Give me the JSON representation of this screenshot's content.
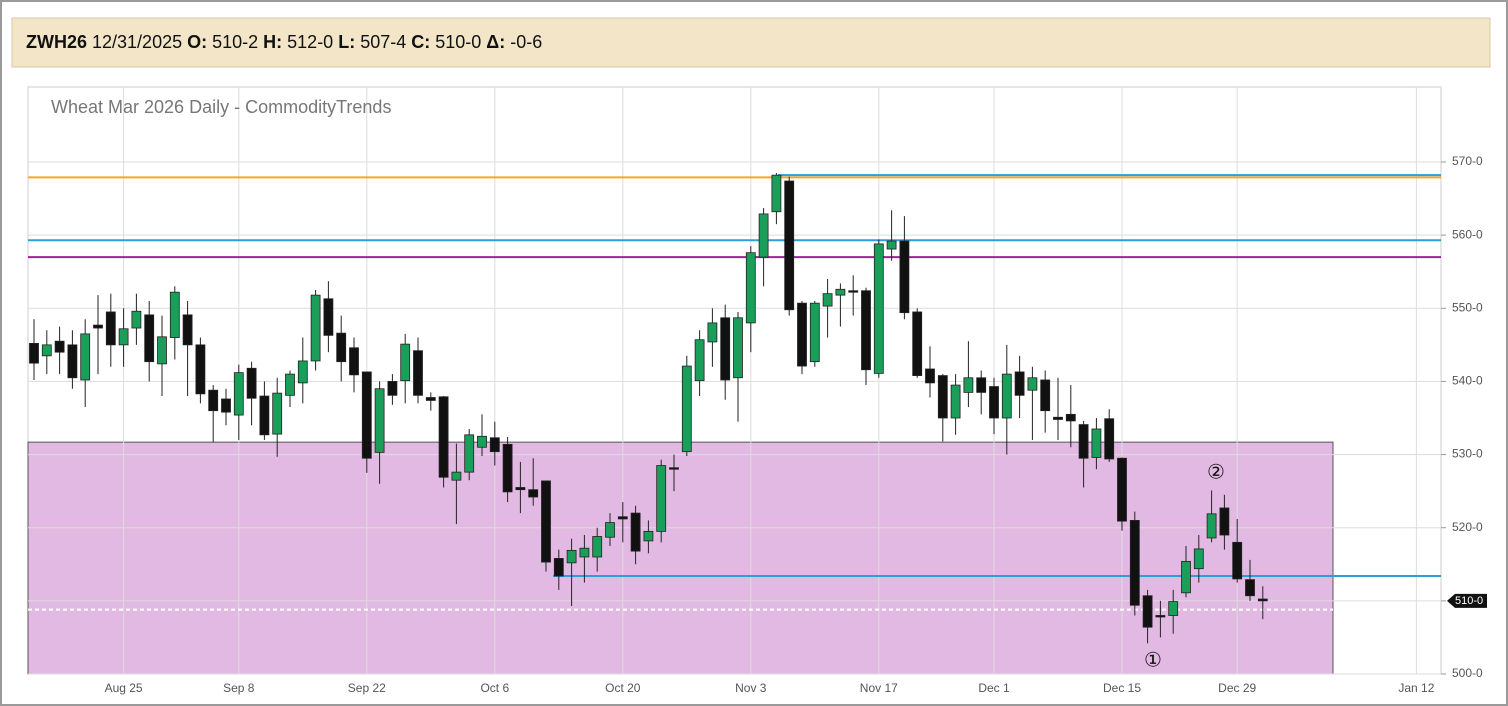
{
  "header": {
    "symbol": "ZWH26",
    "date": "12/31/2025",
    "fields": [
      {
        "label": "O:",
        "value": "510-2"
      },
      {
        "label": "H:",
        "value": "512-0"
      },
      {
        "label": "L:",
        "value": "507-4"
      },
      {
        "label": "C:",
        "value": "510-0"
      },
      {
        "label": "Δ:",
        "value": "-0-6"
      }
    ]
  },
  "chart_data": {
    "type": "candlestick",
    "title": "Wheat Mar 2026 Daily - CommodityTrends",
    "categories": [
      null,
      null,
      null,
      null,
      null,
      null,
      null,
      "Aug 25",
      null,
      null,
      null,
      null,
      null,
      null,
      null,
      null,
      "Sep 8",
      null,
      null,
      null,
      null,
      null,
      null,
      null,
      null,
      null,
      "Sep 22",
      null,
      null,
      null,
      null,
      null,
      null,
      null,
      null,
      null,
      "Oct 6",
      null,
      null,
      null,
      null,
      null,
      null,
      null,
      null,
      null,
      "Oct 20",
      null,
      null,
      null,
      null,
      null,
      null,
      null,
      null,
      null,
      "Nov 3",
      null,
      null,
      null,
      null,
      null,
      null,
      null,
      null,
      null,
      "Nov 17",
      null,
      null,
      null,
      null,
      null,
      null,
      null,
      null,
      "Dec 1",
      null,
      null,
      null,
      null,
      null,
      null,
      null,
      null,
      null,
      "Dec 15",
      null,
      null,
      null,
      null,
      null,
      null,
      null,
      null,
      "Dec 29",
      null,
      null,
      null,
      null,
      null,
      null,
      null,
      null,
      null,
      null,
      null,
      null,
      null,
      "Jan 12"
    ],
    "open": [
      545.2,
      543.5,
      545.5,
      545,
      540.2,
      547.7,
      549.5,
      545,
      547.3,
      549.1,
      542.4,
      546,
      549.1,
      545,
      538.8,
      537.6,
      535.4,
      541.8,
      538,
      532.8,
      538.1,
      539.8,
      542.8,
      551.3,
      546.6,
      544.6,
      541.3,
      530.3,
      540,
      540.1,
      544.2,
      537.8,
      537.9,
      526.5,
      527.6,
      531,
      532.3,
      531.4,
      525.5,
      525.2,
      526.4,
      515.8,
      515.2,
      516,
      516,
      518.7,
      521.5,
      522,
      518.2,
      519.5,
      528.2,
      530.4,
      540.1,
      545.4,
      548.7,
      540.5,
      548,
      557,
      563.2,
      567.4,
      550.7,
      542.7,
      550.3,
      551.8,
      552.4,
      552.4,
      541.1,
      558.1,
      559.2,
      549.5,
      541.7,
      540.8,
      535,
      538.5,
      540.5,
      539.3,
      535,
      541.3,
      538.8,
      540.2,
      535.1,
      535.5,
      534.1,
      529.6,
      534.9,
      529.5,
      521,
      510.7,
      508,
      508,
      511.1,
      514.4,
      518.6,
      522.7,
      518,
      512.9,
      510.25,
      null,
      null,
      null,
      null,
      null,
      null,
      null,
      null,
      null,
      null,
      null,
      null
    ],
    "high": [
      548.5,
      547,
      547.5,
      547,
      548.5,
      551.8,
      552,
      550,
      552,
      551,
      549,
      553,
      551,
      546,
      539.5,
      539,
      542.3,
      542.7,
      540,
      540.5,
      541.5,
      546,
      552.5,
      553.7,
      549,
      546,
      541.3,
      540,
      541,
      546.5,
      546,
      538.5,
      538,
      531.5,
      533.5,
      535.5,
      534.5,
      532.4,
      529,
      529.5,
      526.4,
      517,
      518.5,
      519,
      520,
      522,
      523.5,
      523,
      521,
      529.3,
      530,
      543.5,
      547,
      550,
      550.5,
      549.5,
      558.5,
      563.7,
      568.5,
      568,
      551,
      551,
      554,
      553.4,
      554.5,
      552.8,
      559.4,
      563.4,
      562.6,
      550,
      544.8,
      541,
      541,
      545.5,
      541.5,
      540.5,
      545,
      543.5,
      542,
      541.5,
      540.5,
      539.5,
      534.6,
      535,
      536.2,
      529.6,
      522.2,
      511.5,
      510,
      511.5,
      517.5,
      519,
      525.1,
      524.5,
      521.2,
      515.6,
      512,
      null,
      null,
      null,
      null,
      null,
      null,
      null,
      null,
      null,
      null,
      null,
      null
    ],
    "low": [
      540.2,
      541,
      541,
      539,
      536.5,
      541,
      542,
      542,
      545,
      540,
      538,
      543,
      538,
      537,
      531.7,
      534,
      532,
      534,
      532,
      529.7,
      536.5,
      537,
      541.5,
      544,
      540,
      538.5,
      527.5,
      526,
      536.8,
      537,
      537,
      536,
      525.5,
      520.5,
      526.5,
      529.8,
      528.5,
      523.5,
      522,
      523,
      514,
      511.5,
      509.3,
      512.5,
      514,
      517.5,
      518,
      515,
      516.5,
      518,
      525,
      529.8,
      538,
      542,
      537.5,
      534.5,
      544,
      553,
      561.5,
      549,
      541,
      542,
      546,
      547.5,
      549,
      539.5,
      540.5,
      556.5,
      548.5,
      540.5,
      537.8,
      531.8,
      532.7,
      536.5,
      535.5,
      532.8,
      530,
      535,
      532,
      533,
      532,
      531,
      525.5,
      528,
      529,
      519.6,
      508,
      504.2,
      505,
      505.5,
      510.5,
      512.5,
      518,
      517,
      512.5,
      510,
      507.5,
      null,
      null,
      null,
      null,
      null,
      null,
      null,
      null,
      null,
      null,
      null,
      null
    ],
    "close": [
      542.5,
      545,
      544,
      540.5,
      546.5,
      547.3,
      545,
      547.2,
      549.6,
      542.7,
      546.1,
      552.2,
      545,
      538.3,
      536,
      535.8,
      541.2,
      537.7,
      532.7,
      538.4,
      541,
      542.8,
      551.8,
      546.3,
      542.7,
      540.9,
      529.5,
      539,
      538.1,
      545.1,
      538.1,
      537.4,
      526.9,
      527.6,
      532.7,
      532.5,
      530.4,
      524.9,
      525.2,
      524.2,
      515.3,
      513.4,
      516.9,
      517.2,
      518.8,
      520.7,
      521.2,
      516.8,
      519.5,
      528.5,
      528,
      542.1,
      545.7,
      548,
      540.2,
      548.7,
      557.6,
      562.9,
      568.2,
      549.8,
      542.1,
      550.7,
      552,
      552.6,
      552.3,
      541.6,
      558.8,
      559.2,
      549.4,
      540.8,
      539.8,
      535,
      539.5,
      540.5,
      538.5,
      535,
      541,
      538.1,
      540.5,
      536,
      534.8,
      534.6,
      529.5,
      533.5,
      529.4,
      520.9,
      509.4,
      506.4,
      507.9,
      509.9,
      515.4,
      517.1,
      521.9,
      519,
      513,
      510.7,
      510,
      null,
      null,
      null,
      null,
      null,
      null,
      null,
      null,
      null,
      null,
      null,
      null
    ],
    "up_color": "#1b9e5a",
    "down_color": "#111111",
    "ylim": [
      500,
      570
    ],
    "yticks": [
      {
        "value": 500,
        "label": "500-0"
      },
      {
        "value": 510,
        "label": "510-0"
      },
      {
        "value": 520,
        "label": "520-0"
      },
      {
        "value": 530,
        "label": "530-0"
      },
      {
        "value": 540,
        "label": "540-0"
      },
      {
        "value": 550,
        "label": "550-0"
      },
      {
        "value": 560,
        "label": "560-0"
      },
      {
        "value": 570,
        "label": "570-0"
      }
    ],
    "grid": true,
    "zone": {
      "top": 531.7,
      "bottom": 500,
      "color": "#e2b9e2"
    },
    "levels": [
      {
        "value": 567.9,
        "color": "#f5a623"
      },
      {
        "value": 568.2,
        "color": "#2a9fd8"
      },
      {
        "value": 559.3,
        "color": "#2a9fd8"
      },
      {
        "value": 557,
        "color": "#a0229a"
      },
      {
        "value": 513.4,
        "color": "#2a9fd8"
      },
      {
        "value": 508.8,
        "color": "#ffffff",
        "dashed": true
      }
    ],
    "last_price": {
      "value": 510,
      "label": "510-0"
    },
    "annotations": [
      "①",
      "②"
    ]
  }
}
